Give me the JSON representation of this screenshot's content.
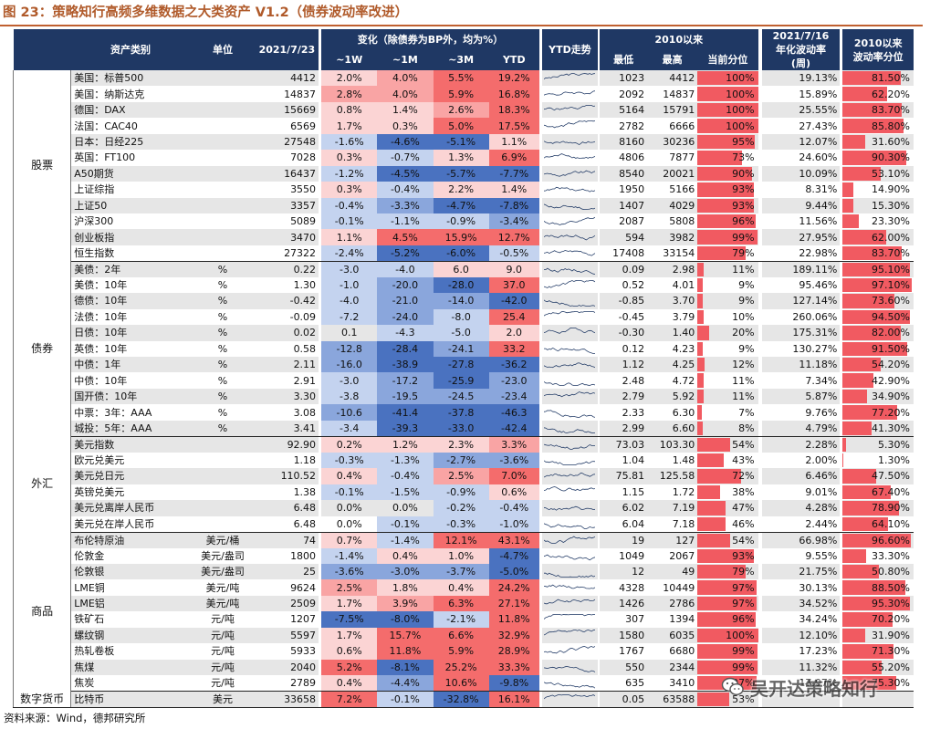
{
  "title": "图 23：策略知行高频多维数据之大类资产 V1.2（债券波动率改进）",
  "source": "资料来源：Wind，德邦研究所",
  "watermark": "吴开达策略知行",
  "header": {
    "name": "资产类别",
    "unit": "单位",
    "date": "2021/7/23",
    "change": "变化（除债券为BP外，均为%）",
    "w1": "~1W",
    "m1": "~1M",
    "m3": "~3M",
    "ytd": "YTD",
    "ytd_trend": "YTD走势",
    "since2010": "2010以来",
    "low": "最低",
    "high": "最高",
    "pctile": "当前分位",
    "vol_line1": "2021/7/16",
    "vol_line2": "年化波动率",
    "vol_line3": "(周)",
    "volpct_line1": "2010以来",
    "volpct_line2": "波动率分位"
  },
  "colors": {
    "red_strong": "#f46c6c",
    "red_mid": "#f9a4a4",
    "red_light": "#fbd4d4",
    "blue_strong": "#4a72c0",
    "blue_mid": "#8aa6dc",
    "blue_light": "#c4d3ef",
    "bar": "#f15a61"
  },
  "groups": [
    {
      "label": "股票",
      "rows": [
        {
          "name": "美国：标普500",
          "unit": "",
          "value": "4412",
          "w1": "2.0%",
          "m1": "4.0%",
          "m3": "5.5%",
          "ytd": "19.2%",
          "low": "1023",
          "high": "4412",
          "pct": "100%",
          "vol": "19.13%",
          "volpct": "81.50%"
        },
        {
          "name": "美国：纳斯达克",
          "unit": "",
          "value": "14837",
          "w1": "2.8%",
          "m1": "4.0%",
          "m3": "5.9%",
          "ytd": "16.8%",
          "low": "2092",
          "high": "14837",
          "pct": "100%",
          "vol": "15.89%",
          "volpct": "62.20%"
        },
        {
          "name": "德国：DAX",
          "unit": "",
          "value": "15669",
          "w1": "0.8%",
          "m1": "1.4%",
          "m3": "2.6%",
          "ytd": "18.3%",
          "low": "5164",
          "high": "15791",
          "pct": "100%",
          "vol": "25.55%",
          "volpct": "83.70%"
        },
        {
          "name": "法国：CAC40",
          "unit": "",
          "value": "6569",
          "w1": "1.7%",
          "m1": "0.3%",
          "m3": "5.0%",
          "ytd": "17.5%",
          "low": "2782",
          "high": "6666",
          "pct": "100%",
          "vol": "27.43%",
          "volpct": "85.80%"
        },
        {
          "name": "日本：日经225",
          "unit": "",
          "value": "27548",
          "w1": "-1.6%",
          "m1": "-4.6%",
          "m3": "-5.1%",
          "ytd": "1.1%",
          "low": "8160",
          "high": "30236",
          "pct": "95%",
          "vol": "12.07%",
          "volpct": "31.60%"
        },
        {
          "name": "英国：FT100",
          "unit": "",
          "value": "7028",
          "w1": "0.3%",
          "m1": "-0.7%",
          "m3": "1.3%",
          "ytd": "6.9%",
          "low": "4806",
          "high": "7877",
          "pct": "73%",
          "vol": "24.60%",
          "volpct": "90.30%"
        },
        {
          "name": "A50期货",
          "unit": "",
          "value": "16437",
          "w1": "-1.2%",
          "m1": "-4.5%",
          "m3": "-5.7%",
          "ytd": "-7.7%",
          "low": "8540",
          "high": "20021",
          "pct": "90%",
          "vol": "10.09%",
          "volpct": "53.10%"
        },
        {
          "name": "上证综指",
          "unit": "",
          "value": "3550",
          "w1": "0.3%",
          "m1": "-0.4%",
          "m3": "2.2%",
          "ytd": "1.4%",
          "low": "1950",
          "high": "5166",
          "pct": "93%",
          "vol": "8.31%",
          "volpct": "14.90%"
        },
        {
          "name": "上证50",
          "unit": "",
          "value": "3357",
          "w1": "-0.4%",
          "m1": "-3.3%",
          "m3": "-4.7%",
          "ytd": "-7.8%",
          "low": "1407",
          "high": "4029",
          "pct": "93%",
          "vol": "9.44%",
          "volpct": "15.30%"
        },
        {
          "name": "沪深300",
          "unit": "",
          "value": "5089",
          "w1": "-0.1%",
          "m1": "-1.1%",
          "m3": "-0.9%",
          "ytd": "-3.4%",
          "low": "2087",
          "high": "5808",
          "pct": "96%",
          "vol": "11.56%",
          "volpct": "23.30%"
        },
        {
          "name": "创业板指",
          "unit": "",
          "value": "3470",
          "w1": "1.1%",
          "m1": "4.5%",
          "m3": "15.9%",
          "ytd": "12.7%",
          "low": "594",
          "high": "3982",
          "pct": "99%",
          "vol": "27.95%",
          "volpct": "62.00%"
        },
        {
          "name": "恒生指数",
          "unit": "",
          "value": "27322",
          "w1": "-2.4%",
          "m1": "-5.2%",
          "m3": "-6.0%",
          "ytd": "-0.5%",
          "low": "17408",
          "high": "33154",
          "pct": "79%",
          "vol": "22.98%",
          "volpct": "83.70%"
        }
      ]
    },
    {
      "label": "债券",
      "rows": [
        {
          "name": "美债：2年",
          "unit": "%",
          "value": "0.22",
          "w1": "-3.0",
          "m1": "-4.0",
          "m3": "6.0",
          "ytd": "9.0",
          "low": "0.09",
          "high": "2.98",
          "pct": "11%",
          "vol": "189.11%",
          "volpct": "95.10%"
        },
        {
          "name": "美债：10年",
          "unit": "%",
          "value": "1.30",
          "w1": "-1.0",
          "m1": "-20.0",
          "m3": "-28.0",
          "ytd": "37.0",
          "low": "0.52",
          "high": "4.01",
          "pct": "9%",
          "vol": "95.46%",
          "volpct": "97.10%"
        },
        {
          "name": "德债：10年",
          "unit": "%",
          "value": "-0.42",
          "w1": "-4.0",
          "m1": "-21.0",
          "m3": "-14.0",
          "ytd": "-42.0",
          "low": "-0.85",
          "high": "3.70",
          "pct": "9%",
          "vol": "127.14%",
          "volpct": "73.60%"
        },
        {
          "name": "法债：10年",
          "unit": "%",
          "value": "-0.09",
          "w1": "-7.2",
          "m1": "-24.0",
          "m3": "-8.0",
          "ytd": "25.4",
          "low": "-0.45",
          "high": "3.79",
          "pct": "10%",
          "vol": "260.06%",
          "volpct": "94.50%"
        },
        {
          "name": "日债：10年",
          "unit": "%",
          "value": "0.02",
          "w1": "0.1",
          "m1": "-4.3",
          "m3": "-5.0",
          "ytd": "2.0",
          "low": "-0.30",
          "high": "1.40",
          "pct": "20%",
          "vol": "175.31%",
          "volpct": "82.00%"
        },
        {
          "name": "英债：10年",
          "unit": "%",
          "value": "0.58",
          "w1": "-12.8",
          "m1": "-28.4",
          "m3": "-24.1",
          "ytd": "33.2",
          "low": "0.12",
          "high": "4.23",
          "pct": "9%",
          "vol": "130.27%",
          "volpct": "91.50%"
        },
        {
          "name": "中债：1年",
          "unit": "%",
          "value": "2.11",
          "w1": "-16.0",
          "m1": "-38.9",
          "m3": "-27.8",
          "ytd": "-36.2",
          "low": "1.12",
          "high": "4.25",
          "pct": "12%",
          "vol": "11.18%",
          "volpct": "54.20%"
        },
        {
          "name": "中债：10年",
          "unit": "%",
          "value": "2.91",
          "w1": "-3.0",
          "m1": "-17.2",
          "m3": "-25.9",
          "ytd": "-23.0",
          "low": "2.48",
          "high": "4.72",
          "pct": "11%",
          "vol": "7.34%",
          "volpct": "42.90%"
        },
        {
          "name": "国开债：10年",
          "unit": "%",
          "value": "3.30",
          "w1": "-3.8",
          "m1": "-19.5",
          "m3": "-24.5",
          "ytd": "-23.4",
          "low": "2.79",
          "high": "5.92",
          "pct": "11%",
          "vol": "5.87%",
          "volpct": "34.90%"
        },
        {
          "name": "中票：3年：AAA",
          "unit": "%",
          "value": "3.08",
          "w1": "-10.6",
          "m1": "-41.4",
          "m3": "-37.8",
          "ytd": "-46.3",
          "low": "2.33",
          "high": "6.30",
          "pct": "7%",
          "vol": "9.76%",
          "volpct": "77.20%"
        },
        {
          "name": "城投：5年：AAA",
          "unit": "%",
          "value": "3.41",
          "w1": "-3.4",
          "m1": "-39.3",
          "m3": "-33.0",
          "ytd": "-42.4",
          "low": "2.99",
          "high": "6.60",
          "pct": "8%",
          "vol": "4.79%",
          "volpct": "41.30%"
        }
      ]
    },
    {
      "label": "外汇",
      "rows": [
        {
          "name": "美元指数",
          "unit": "",
          "value": "92.90",
          "w1": "0.2%",
          "m1": "1.2%",
          "m3": "2.3%",
          "ytd": "3.3%",
          "low": "73.03",
          "high": "103.30",
          "pct": "54%",
          "vol": "2.28%",
          "volpct": "5.30%"
        },
        {
          "name": "欧元兑美元",
          "unit": "",
          "value": "1.18",
          "w1": "-0.3%",
          "m1": "-1.3%",
          "m3": "-2.7%",
          "ytd": "-3.6%",
          "low": "1.04",
          "high": "1.48",
          "pct": "43%",
          "vol": "2.00%",
          "volpct": "1.30%"
        },
        {
          "name": "美元兑日元",
          "unit": "",
          "value": "110.52",
          "w1": "0.4%",
          "m1": "-0.4%",
          "m3": "2.5%",
          "ytd": "7.0%",
          "low": "75.81",
          "high": "125.58",
          "pct": "72%",
          "vol": "6.46%",
          "volpct": "47.50%"
        },
        {
          "name": "英镑兑美元",
          "unit": "",
          "value": "1.38",
          "w1": "-0.1%",
          "m1": "-1.5%",
          "m3": "-0.9%",
          "ytd": "0.6%",
          "low": "1.15",
          "high": "1.72",
          "pct": "38%",
          "vol": "9.01%",
          "volpct": "67.40%"
        },
        {
          "name": "美元兑离岸人民币",
          "unit": "",
          "value": "6.48",
          "w1": "0.0%",
          "m1": "0.0%",
          "m3": "-0.2%",
          "ytd": "-0.4%",
          "low": "6.02",
          "high": "7.19",
          "pct": "47%",
          "vol": "4.28%",
          "volpct": "78.90%"
        },
        {
          "name": "美元兑在岸人民币",
          "unit": "",
          "value": "6.48",
          "w1": "0.0%",
          "m1": "-0.1%",
          "m3": "-0.3%",
          "ytd": "-1.0%",
          "low": "6.04",
          "high": "7.18",
          "pct": "46%",
          "vol": "2.44%",
          "volpct": "64.10%"
        }
      ]
    },
    {
      "label": "商品",
      "rows": [
        {
          "name": "布伦特原油",
          "unit": "美元/桶",
          "value": "74",
          "w1": "0.7%",
          "m1": "-1.4%",
          "m3": "12.1%",
          "ytd": "43.1%",
          "low": "19",
          "high": "127",
          "pct": "54%",
          "vol": "66.98%",
          "volpct": "96.60%"
        },
        {
          "name": "伦敦金",
          "unit": "美元/盎司",
          "value": "1800",
          "w1": "-1.4%",
          "m1": "0.4%",
          "m3": "1.0%",
          "ytd": "-4.7%",
          "low": "1049",
          "high": "2067",
          "pct": "93%",
          "vol": "9.55%",
          "volpct": "33.30%"
        },
        {
          "name": "伦敦银",
          "unit": "美元/盎司",
          "value": "25",
          "w1": "-3.6%",
          "m1": "-3.0%",
          "m3": "-3.7%",
          "ytd": "-5.0%",
          "low": "12",
          "high": "49",
          "pct": "79%",
          "vol": "21.75%",
          "volpct": "50.80%"
        },
        {
          "name": "LME铜",
          "unit": "美元/吨",
          "value": "9624",
          "w1": "2.5%",
          "m1": "1.8%",
          "m3": "0.4%",
          "ytd": "24.2%",
          "low": "4328",
          "high": "10449",
          "pct": "97%",
          "vol": "30.13%",
          "volpct": "88.50%"
        },
        {
          "name": "LME铝",
          "unit": "美元/吨",
          "value": "2509",
          "w1": "1.7%",
          "m1": "3.9%",
          "m3": "6.3%",
          "ytd": "27.1%",
          "low": "1426",
          "high": "2786",
          "pct": "97%",
          "vol": "34.52%",
          "volpct": "95.30%"
        },
        {
          "name": "铁矿石",
          "unit": "元/吨",
          "value": "1207",
          "w1": "-7.5%",
          "m1": "-8.0%",
          "m3": "-2.1%",
          "ytd": "11.8%",
          "low": "307",
          "high": "1394",
          "pct": "96%",
          "vol": "34.24%",
          "volpct": "70.20%"
        },
        {
          "name": "螺纹钢",
          "unit": "元/吨",
          "value": "5597",
          "w1": "1.7%",
          "m1": "15.7%",
          "m3": "6.6%",
          "ytd": "32.9%",
          "low": "1580",
          "high": "6035",
          "pct": "100%",
          "vol": "12.10%",
          "volpct": "31.90%"
        },
        {
          "name": "热轧卷板",
          "unit": "元/吨",
          "value": "5933",
          "w1": "0.6%",
          "m1": "11.8%",
          "m3": "5.9%",
          "ytd": "28.9%",
          "low": "1767",
          "high": "6680",
          "pct": "99%",
          "vol": "17.23%",
          "volpct": "71.30%"
        },
        {
          "name": "焦煤",
          "unit": "元/吨",
          "value": "2040",
          "w1": "5.2%",
          "m1": "-8.1%",
          "m3": "25.2%",
          "ytd": "33.3%",
          "low": "550",
          "high": "2344",
          "pct": "99%",
          "vol": "11.32%",
          "volpct": "55.20%"
        },
        {
          "name": "焦炭",
          "unit": "元/吨",
          "value": "2789",
          "w1": "0.4%",
          "m1": "-4.4%",
          "m3": "10.6%",
          "ytd": "-9.8%",
          "low": "635",
          "high": "3410",
          "pct": "97%",
          "vol": "17.07%",
          "volpct": "75.30%"
        }
      ]
    },
    {
      "label": "数字货币",
      "rows": [
        {
          "name": "比特币",
          "unit": "美元",
          "value": "33658",
          "w1": "7.2%",
          "m1": "-0.1%",
          "m3": "-32.8%",
          "ytd": "16.1%",
          "low": "0.05",
          "high": "63588",
          "pct": "53%",
          "vol": "",
          "volpct": ""
        }
      ]
    }
  ]
}
